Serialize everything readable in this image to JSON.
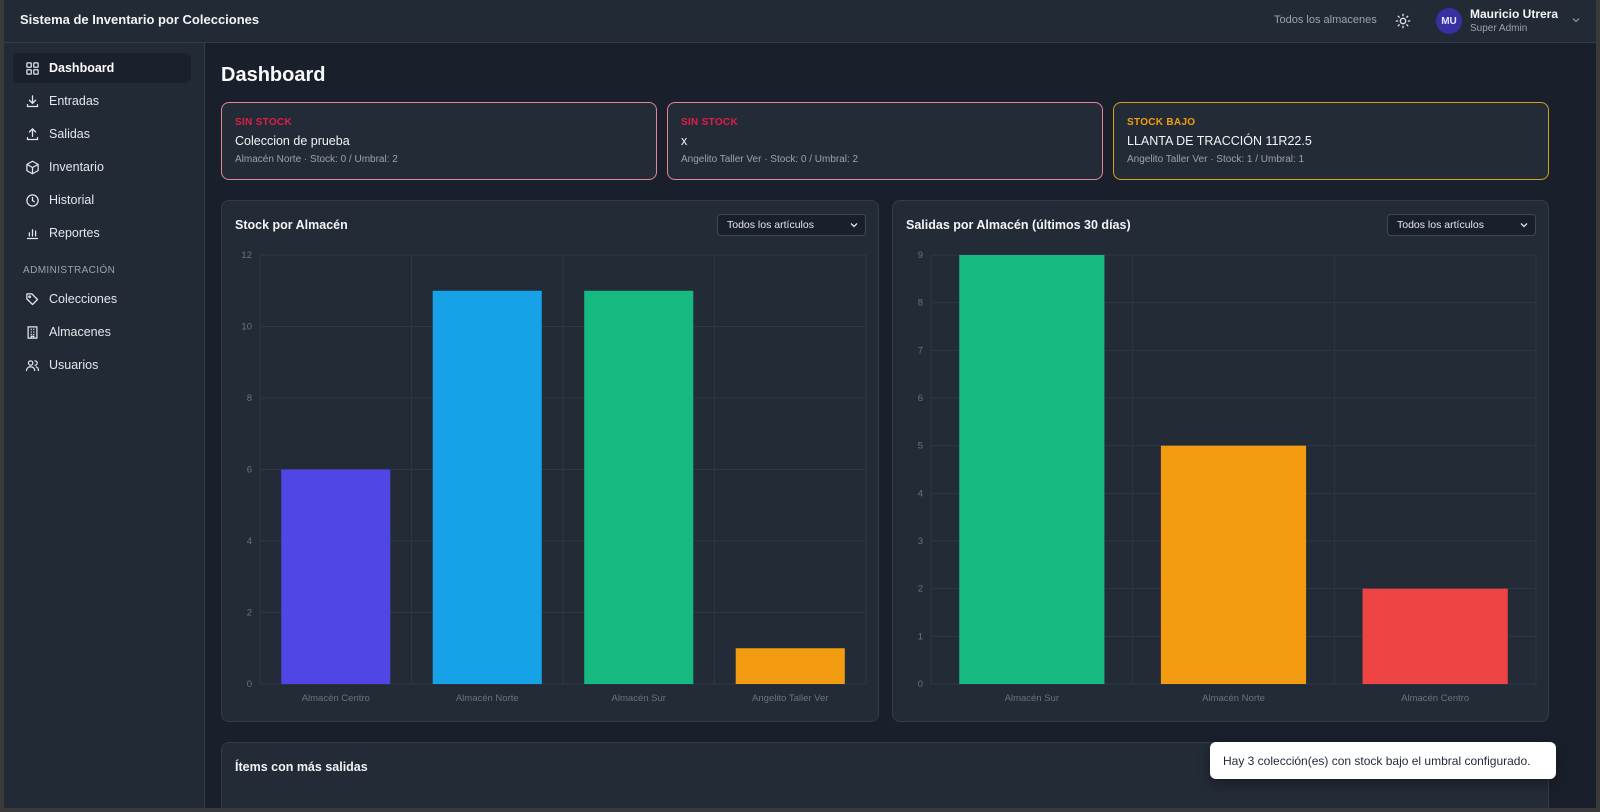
{
  "app": {
    "title": "Sistema de Inventario por Colecciones"
  },
  "header": {
    "warehouse_filter": "Todos los almacenes",
    "theme_icon": "sun-icon",
    "user": {
      "initials": "MU",
      "name": "Mauricio Utrera",
      "role": "Super Admin"
    }
  },
  "sidebar": {
    "items": [
      {
        "label": "Dashboard",
        "icon": "grid-icon",
        "active": true
      },
      {
        "label": "Entradas",
        "icon": "download-icon"
      },
      {
        "label": "Salidas",
        "icon": "upload-icon"
      },
      {
        "label": "Inventario",
        "icon": "box-icon"
      },
      {
        "label": "Historial",
        "icon": "clock-icon"
      },
      {
        "label": "Reportes",
        "icon": "bar-chart-icon"
      }
    ],
    "section_label": "ADMINISTRACIÓN",
    "admin_items": [
      {
        "label": "Colecciones",
        "icon": "tag-icon"
      },
      {
        "label": "Almacenes",
        "icon": "building-icon"
      },
      {
        "label": "Usuarios",
        "icon": "users-icon"
      }
    ]
  },
  "page": {
    "title": "Dashboard"
  },
  "alerts": [
    {
      "kind": "SIN STOCK",
      "name": "Coleccion de prueba",
      "meta": "Almacén Norte · Stock: 0 / Umbral: 2",
      "color": "#e11d48"
    },
    {
      "kind": "SIN STOCK",
      "name": "x",
      "meta": "Angelito Taller Ver · Stock: 0 / Umbral: 2",
      "color": "#e11d48"
    },
    {
      "kind": "STOCK BAJO",
      "name": "LLANTA DE TRACCIÓN 11R22.5",
      "meta": "Angelito Taller Ver · Stock: 1 / Umbral: 1",
      "color": "#f59e0b"
    }
  ],
  "charts": {
    "stock": {
      "title": "Stock por Almacén",
      "filter": "Todos los artículos"
    },
    "salidas": {
      "title": "Salidas por Almacén (últimos 30 días)",
      "filter": "Todos los artículos"
    }
  },
  "chart_data": [
    {
      "type": "bar",
      "title": "Stock por Almacén",
      "categories": [
        "Almacén Centro",
        "Almacén Norte",
        "Almacén Sur",
        "Angelito Taller Ver"
      ],
      "values": [
        6,
        11,
        11,
        1
      ],
      "colors": [
        "#5046e5",
        "#17a2e8",
        "#16b97f",
        "#f39c12"
      ],
      "ylim": [
        0,
        12
      ],
      "yticks": [
        0,
        2,
        4,
        6,
        8,
        10,
        12
      ],
      "grid": true
    },
    {
      "type": "bar",
      "title": "Salidas por Almacén (últimos 30 días)",
      "categories": [
        "Almacén Sur",
        "Almacén Norte",
        "Almacén Centro"
      ],
      "values": [
        9,
        5,
        2
      ],
      "colors": [
        "#16b97f",
        "#f39c12",
        "#ef4444"
      ],
      "ylim": [
        0,
        9
      ],
      "yticks": [
        0,
        1,
        2,
        3,
        4,
        5,
        6,
        7,
        8,
        9
      ],
      "grid": true
    }
  ],
  "bottom": {
    "title": "Ítems con más salidas"
  },
  "toast": {
    "message": "Hay 3 colección(es) con stock bajo el umbral configurado."
  }
}
